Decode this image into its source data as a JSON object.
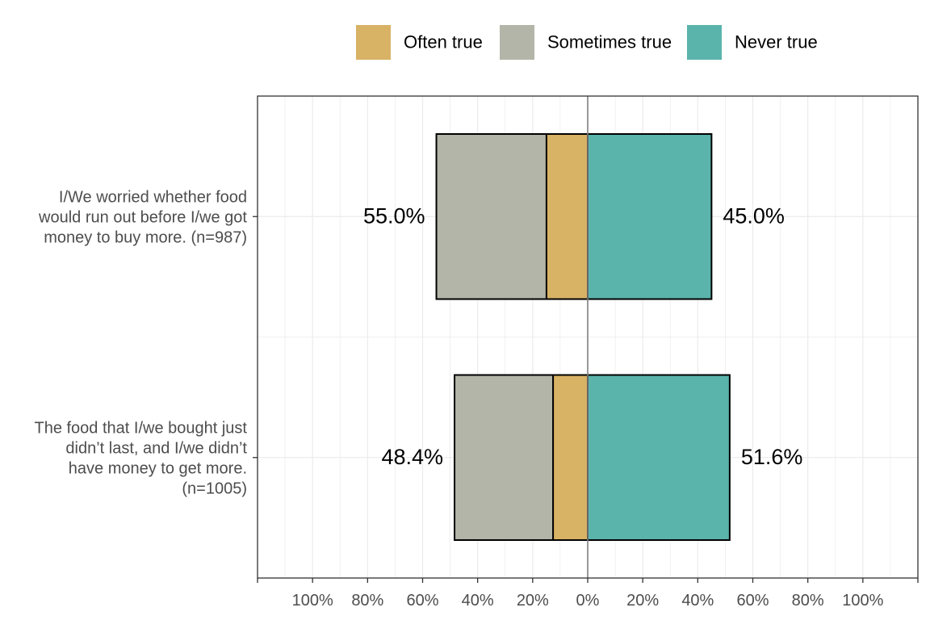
{
  "chart_data": {
    "type": "bar",
    "orientation": "horizontal",
    "stacked": "diverging",
    "legend_position": "top",
    "grid": true,
    "xlim": [
      -120,
      120
    ],
    "ticks": [
      -100,
      -80,
      -60,
      -40,
      -20,
      0,
      20,
      40,
      60,
      80,
      100
    ],
    "tick_labels": [
      "100%",
      "80%",
      "60%",
      "40%",
      "20%",
      "0%",
      "20%",
      "40%",
      "60%",
      "80%",
      "100%"
    ],
    "categories": [
      [
        "I/We worried whether food",
        "would run out before I/we got",
        "money to buy more. (n=987)"
      ],
      [
        "The food that I/we bought just",
        "didn’t last, and I/we didn’t",
        "have money to get more.",
        "(n=1005)"
      ]
    ],
    "series": [
      {
        "name": "Often true",
        "color": "#D8B265",
        "values": [
          -15.0,
          -12.6
        ]
      },
      {
        "name": "Sometimes true",
        "color": "#B3B5A8",
        "values": [
          -40.0,
          -35.8
        ]
      },
      {
        "name": "Never true",
        "color": "#5AB4AC",
        "values": [
          45.0,
          51.6
        ]
      }
    ],
    "negative_total_labels": [
      "55.0%",
      "48.4%"
    ],
    "positive_total_labels": [
      "45.0%",
      "51.6%"
    ]
  }
}
